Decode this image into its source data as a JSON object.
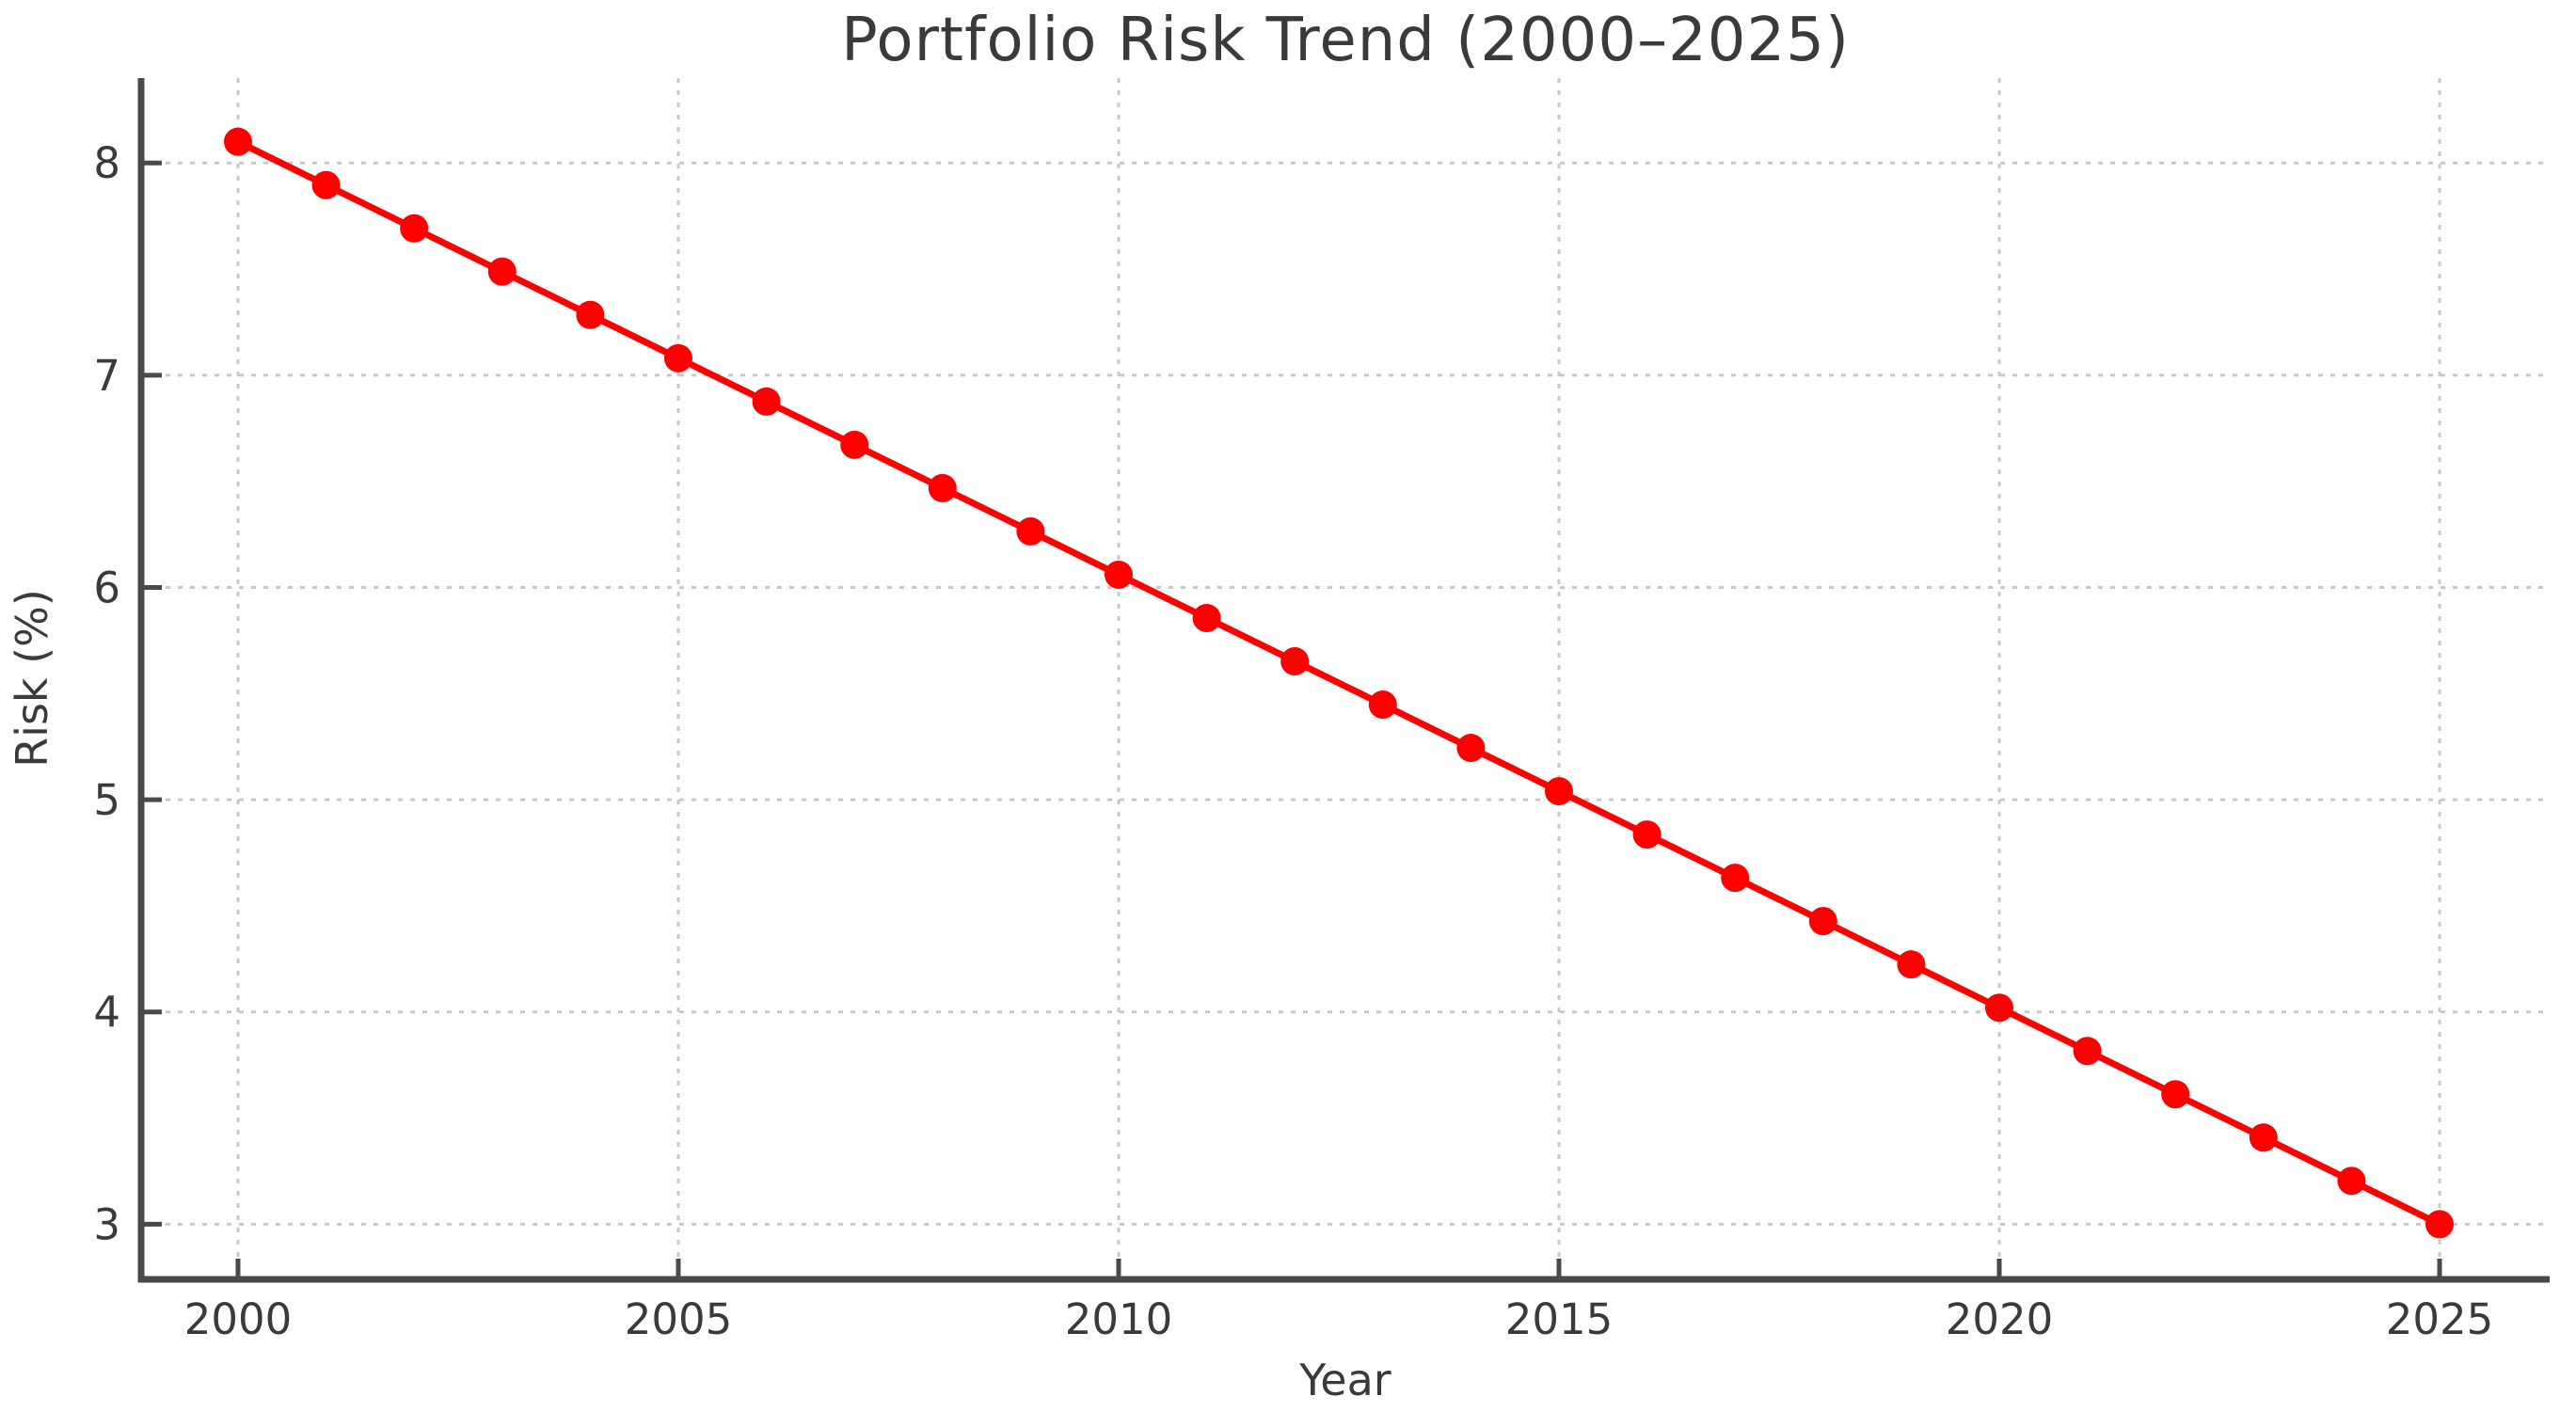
{
  "chart_data": {
    "type": "line",
    "title": "Portfolio Risk Trend (2000–2025)",
    "xlabel": "Year",
    "ylabel": "Risk (%)",
    "series": [
      {
        "name": "Risk",
        "x": [
          2000,
          2001,
          2002,
          2003,
          2004,
          2005,
          2006,
          2007,
          2008,
          2009,
          2010,
          2011,
          2012,
          2013,
          2014,
          2015,
          2016,
          2017,
          2018,
          2019,
          2020,
          2021,
          2022,
          2023,
          2024,
          2025
        ],
        "y": [
          8.1,
          7.896,
          7.692,
          7.488,
          7.284,
          7.08,
          6.876,
          6.672,
          6.468,
          6.264,
          6.06,
          5.856,
          5.652,
          5.448,
          5.244,
          5.04,
          4.836,
          4.632,
          4.428,
          4.224,
          4.02,
          3.816,
          3.612,
          3.408,
          3.204,
          3.0
        ]
      }
    ],
    "xticks": [
      2000,
      2005,
      2010,
      2015,
      2020,
      2025
    ],
    "yticks": [
      3,
      4,
      5,
      6,
      7,
      8
    ],
    "xlim": [
      1998.9,
      2026.25
    ],
    "ylim": [
      2.74,
      8.4
    ],
    "grid": true,
    "grid_style": "dotted",
    "legend": "none",
    "marker": "circle",
    "colors": {
      "line": "#ff0000",
      "grid": "#c9c9c9",
      "axis": "#4a4a4a",
      "text": "#3a3a3a"
    }
  }
}
